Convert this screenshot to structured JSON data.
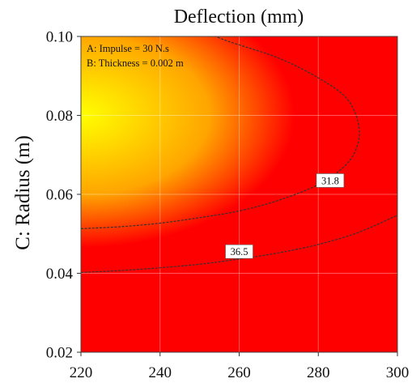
{
  "chart_data": {
    "type": "heatmap",
    "title": "Deflection (mm)",
    "xlabel": "",
    "ylabel": "C: Radius (m)",
    "xlim": [
      220,
      300
    ],
    "ylim": [
      0.02,
      0.1
    ],
    "x_ticks": [
      "220",
      "240",
      "260",
      "280",
      "300"
    ],
    "y_ticks": [
      "0.02",
      "0.04",
      "0.06",
      "0.08",
      "0.10"
    ],
    "x_tick_values": [
      220,
      240,
      260,
      280,
      300
    ],
    "y_tick_values": [
      0.02,
      0.04,
      0.06,
      0.08,
      0.1
    ],
    "fixed_factors": [
      "A: Impulse = 30 N.s",
      "B: Thickness = 0.002 m"
    ],
    "colormap": [
      "#ffff00",
      "#ffa500",
      "#ff0000"
    ],
    "minimum_location": {
      "x": 220,
      "y": 0.08
    },
    "contours": [
      {
        "level": "31.8",
        "label_at": {
          "x": 283,
          "y": 0.0635
        },
        "points": [
          [
            220,
            0.0513
          ],
          [
            230,
            0.0518
          ],
          [
            240,
            0.0527
          ],
          [
            250,
            0.0541
          ],
          [
            260,
            0.0558
          ],
          [
            270,
            0.0585
          ],
          [
            280,
            0.0625
          ],
          [
            287,
            0.0675
          ],
          [
            290,
            0.0728
          ],
          [
            290,
            0.0785
          ],
          [
            287,
            0.0845
          ],
          [
            280,
            0.0895
          ],
          [
            270,
            0.0945
          ],
          [
            258,
            0.0985
          ],
          [
            254,
            0.1
          ]
        ]
      },
      {
        "level": "36.5",
        "label_at": {
          "x": 260,
          "y": 0.0455
        },
        "points": [
          [
            220,
            0.0402
          ],
          [
            230,
            0.0407
          ],
          [
            240,
            0.0414
          ],
          [
            250,
            0.0423
          ],
          [
            260,
            0.0436
          ],
          [
            270,
            0.0452
          ],
          [
            280,
            0.0473
          ],
          [
            290,
            0.0503
          ],
          [
            300,
            0.0547
          ]
        ]
      }
    ]
  }
}
